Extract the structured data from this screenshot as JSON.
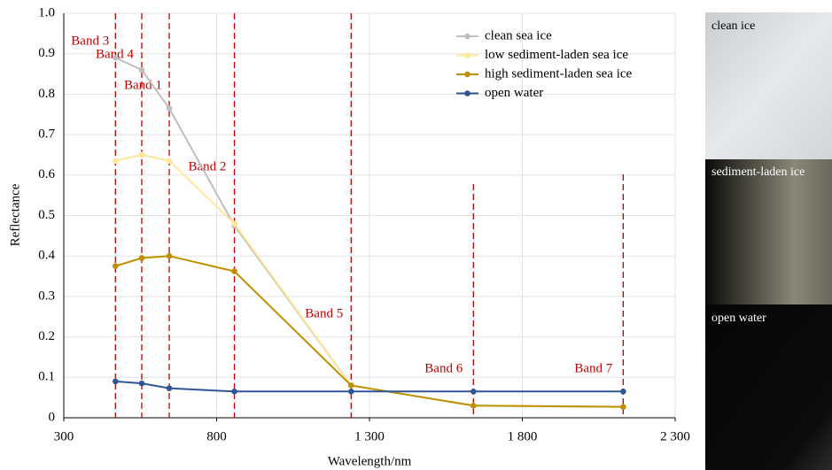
{
  "chart_data": {
    "type": "line",
    "x_label": "Wavelength/nm",
    "y_label": "Reflectance",
    "x": [
      469,
      555,
      645,
      858,
      1240,
      1640,
      2130
    ],
    "series": [
      {
        "name": "clean sea ice",
        "color": "#bfbfbf",
        "values": [
          0.89,
          0.86,
          0.765,
          0.475,
          0.08,
          0.03,
          0.027
        ]
      },
      {
        "name": "low sediment-laden sea ice",
        "color": "#ffe699",
        "values": [
          0.635,
          0.65,
          0.635,
          0.48,
          0.08,
          0.03,
          0.027
        ]
      },
      {
        "name": "high sediment-laden sea ice",
        "color": "#bf9000",
        "values": [
          0.375,
          0.395,
          0.4,
          0.362,
          0.08,
          0.03,
          0.027
        ]
      },
      {
        "name": "open water",
        "color": "#2f5597",
        "values": [
          0.09,
          0.085,
          0.073,
          0.065,
          0.065,
          0.065,
          0.065
        ]
      }
    ],
    "bands": [
      {
        "label": "Band 3",
        "x": 469
      },
      {
        "label": "Band 4",
        "x": 555
      },
      {
        "label": "Band 1",
        "x": 645
      },
      {
        "label": "Band 2",
        "x": 858
      },
      {
        "label": "Band 5",
        "x": 1240
      },
      {
        "label": "Band 6",
        "x": 1640
      },
      {
        "label": "Band 7",
        "x": 2130
      }
    ],
    "band_color": "#c00000",
    "xlim": [
      300,
      2300
    ],
    "xticks": [
      300,
      800,
      {
        "value": 1300,
        "label": "1 300"
      },
      {
        "value": 1800,
        "label": "1 800"
      },
      {
        "value": 2300,
        "label": "2 300"
      }
    ],
    "ylim": [
      0,
      1
    ],
    "yticks": [
      0,
      0.1,
      0.2,
      0.3,
      0.4,
      0.5,
      0.6,
      0.7,
      0.8,
      0.9,
      {
        "value": 1,
        "label": "1.0"
      }
    ],
    "grid": true,
    "legend": "upper right"
  },
  "image_panels": [
    "clean ice",
    "sediment-laden ice",
    "open water"
  ]
}
